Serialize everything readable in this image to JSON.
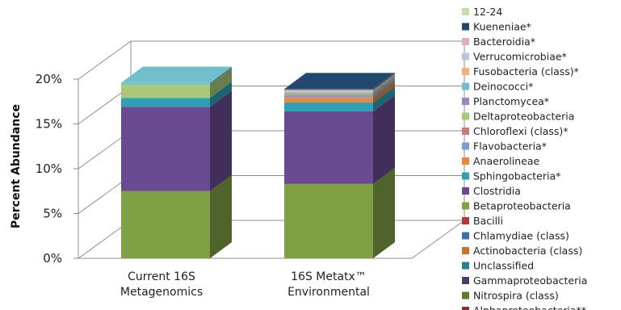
{
  "chart_data": {
    "type": "bar",
    "stacked": true,
    "three_d": true,
    "ylabel": "Percent Abundance",
    "ylim": [
      0,
      20
    ],
    "y_ticks": [
      "0%",
      "5%",
      "10%",
      "15%",
      "20%"
    ],
    "categories": [
      "Current 16S\nMetagenomics",
      "16S Metatx™\nEnvironmental"
    ],
    "legend_position": "right",
    "series": [
      {
        "name": "Alphaproteobacteria**",
        "color": "#8B2F2F",
        "values": [
          0,
          0
        ]
      },
      {
        "name": "Nitrospira (class)",
        "color": "#5E7A2E",
        "values": [
          0,
          0
        ]
      },
      {
        "name": "Gammaproteobacteria",
        "color": "#4E3B6F",
        "values": [
          0,
          0
        ]
      },
      {
        "name": "Unclassified",
        "color": "#2E7D8C",
        "values": [
          0,
          0
        ]
      },
      {
        "name": "Actinobacteria (class)",
        "color": "#C8742A",
        "values": [
          0,
          0
        ]
      },
      {
        "name": "Chlamydiae (class)",
        "color": "#3E6FB0",
        "values": [
          0,
          0
        ]
      },
      {
        "name": "Bacilli",
        "color": "#B03A3A",
        "values": [
          0,
          0
        ]
      },
      {
        "name": "Betaproteobacteria",
        "color": "#7FA043",
        "values": [
          7.5,
          8.3
        ]
      },
      {
        "name": "Clostridia",
        "color": "#6A4A91",
        "values": [
          9.4,
          8.1
        ]
      },
      {
        "name": "Sphingobacteria*",
        "color": "#2FA0B5",
        "values": [
          1.0,
          1.0
        ]
      },
      {
        "name": "Anaerolineae",
        "color": "#E8893A",
        "values": [
          0,
          0.5
        ]
      },
      {
        "name": "Flavobacteria*",
        "color": "#7E9CCB",
        "values": [
          0,
          0.2
        ]
      },
      {
        "name": "Chloroflexi (class)*",
        "color": "#CC7A7A",
        "values": [
          0,
          0.1
        ]
      },
      {
        "name": "Deltaproteobacteria",
        "color": "#A9C97A",
        "values": [
          1.5,
          0.1
        ]
      },
      {
        "name": "Planctomycea*",
        "color": "#9C86BA",
        "values": [
          0,
          0.1
        ]
      },
      {
        "name": "Deinococci*",
        "color": "#6FC0CC",
        "values": [
          0.2,
          0.1
        ]
      },
      {
        "name": "Fusobacteria (class)*",
        "color": "#F2B07A",
        "values": [
          0,
          0.1
        ]
      },
      {
        "name": "Verrucomicrobiae*",
        "color": "#B7C6DE",
        "values": [
          0,
          0.1
        ]
      },
      {
        "name": "Bacteroidia*",
        "color": "#E0B0B0",
        "values": [
          0,
          0.1
        ]
      },
      {
        "name": "Kueneniae*",
        "color": "#24476E",
        "values": [
          0,
          0.1
        ]
      },
      {
        "name": "12-24",
        "color": "#C9DBAE",
        "values": [
          0,
          0
        ]
      }
    ]
  }
}
